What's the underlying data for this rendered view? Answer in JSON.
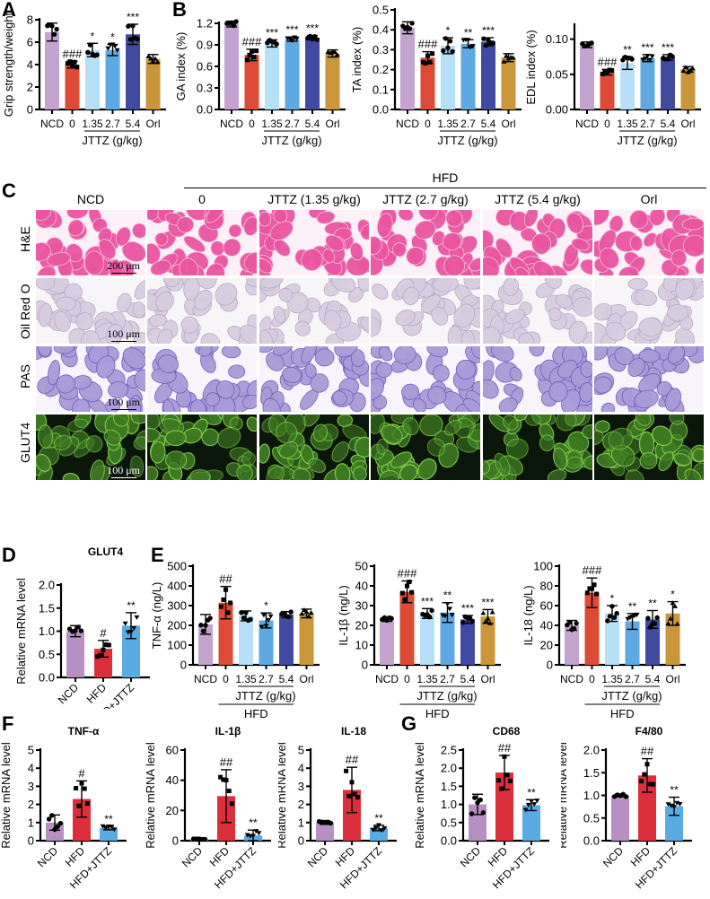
{
  "panels": {
    "A": "A",
    "B": "B",
    "C": "C",
    "D": "D",
    "E": "E",
    "F": "F",
    "G": "G"
  },
  "colors": {
    "NCD": "#c3a3cf",
    "HFD0": "#dd4b37",
    "J135": "#b5e0f8",
    "J27": "#5ea9e2",
    "J54": "#3f4aa0",
    "Orl": "#c9973a",
    "HFD_red": "#dc2f3c",
    "HFDJTTZ": "#5aaae4",
    "NCD_mrna": "#b78fc3"
  },
  "dose_axis": {
    "categories": [
      "NCD",
      "0",
      "1.35",
      "2.7",
      "5.4",
      "Orl"
    ],
    "group_label": "JTTZ (g/kg)",
    "hfd_label": "HFD"
  },
  "micrograph": {
    "hfd_header": "HFD",
    "columns": [
      "NCD",
      "0",
      "JTTZ (1.35 g/kg)",
      "JTTZ (2.7 g/kg)",
      "JTTZ (5.4 g/kg)",
      "Orl"
    ],
    "rows": [
      "H&E",
      "Oil Red O",
      "PAS",
      "GLUT4"
    ],
    "scalebars": [
      "200 μm",
      "100 μm",
      "100 μm",
      "100 μm"
    ]
  },
  "chart_data": [
    {
      "id": "A",
      "type": "bar",
      "title": "",
      "ylabel": "Grip strength/weight",
      "categories": [
        "NCD",
        "0",
        "1.35",
        "2.7",
        "5.4",
        "Orl"
      ],
      "values": [
        6.9,
        4.0,
        5.3,
        5.3,
        6.7,
        4.5
      ],
      "errors": [
        0.8,
        0.3,
        0.6,
        0.5,
        0.9,
        0.4
      ],
      "sig": [
        "",
        "###",
        "*",
        "*",
        "***",
        ""
      ],
      "ylim": [
        0,
        8
      ],
      "yticks": [
        "0",
        "2",
        "4",
        "6",
        "8"
      ],
      "ytick_vals": [
        0,
        2,
        4,
        6,
        8
      ]
    },
    {
      "id": "B1",
      "type": "bar",
      "ylabel": "GA index (%)",
      "categories": [
        "NCD",
        "0",
        "1.35",
        "2.7",
        "5.4",
        "Orl"
      ],
      "values": [
        1.19,
        0.76,
        0.92,
        0.98,
        1.0,
        0.78
      ],
      "errors": [
        0.04,
        0.08,
        0.05,
        0.03,
        0.03,
        0.05
      ],
      "sig": [
        "",
        "###",
        "***",
        "***",
        "***",
        ""
      ],
      "ylim": [
        0,
        1.2
      ],
      "yticks": [
        "0.0",
        "0.3",
        "0.6",
        "0.9",
        "1.2"
      ],
      "ytick_vals": [
        0,
        0.3,
        0.6,
        0.9,
        1.2
      ]
    },
    {
      "id": "B2",
      "type": "bar",
      "ylabel": "TA index (%)",
      "categories": [
        "NCD",
        "0",
        "1.35",
        "2.7",
        "5.4",
        "Orl"
      ],
      "values": [
        0.41,
        0.26,
        0.32,
        0.33,
        0.34,
        0.26
      ],
      "errors": [
        0.03,
        0.03,
        0.04,
        0.02,
        0.02,
        0.02
      ],
      "sig": [
        "",
        "###",
        "*",
        "**",
        "***",
        ""
      ],
      "ylim": [
        0,
        0.5
      ],
      "yticks": [
        "0.0",
        "0.1",
        "0.2",
        "0.3",
        "0.4",
        "0.5"
      ],
      "ytick_vals": [
        0,
        0.1,
        0.2,
        0.3,
        0.4,
        0.5
      ]
    },
    {
      "id": "B3",
      "type": "bar",
      "ylabel": "EDL index (%)",
      "categories": [
        "NCD",
        "0",
        "1.35",
        "2.7",
        "5.4",
        "Orl"
      ],
      "values": [
        0.092,
        0.053,
        0.066,
        0.073,
        0.074,
        0.057
      ],
      "errors": [
        0.004,
        0.004,
        0.009,
        0.005,
        0.004,
        0.004
      ],
      "sig": [
        "",
        "###",
        "**",
        "***",
        "***",
        ""
      ],
      "ylim": [
        0,
        0.12
      ],
      "yticks": [
        "0.00",
        "0.05",
        "0.10"
      ],
      "ytick_vals": [
        0,
        0.05,
        0.1
      ]
    },
    {
      "id": "D",
      "type": "bar",
      "title": "GLUT4",
      "ylabel": "Relative mRNA level",
      "categories": [
        "NCD",
        "HFD",
        "HFD+JTTZ"
      ],
      "values": [
        1.0,
        0.62,
        1.12
      ],
      "errors": [
        0.12,
        0.18,
        0.28
      ],
      "sig": [
        "",
        "#",
        "**"
      ],
      "ylim": [
        0,
        2.0
      ],
      "yticks": [
        "0.0",
        "0.5",
        "1.0",
        "1.5",
        "2.0"
      ],
      "ytick_vals": [
        0,
        0.5,
        1.0,
        1.5,
        2.0
      ]
    },
    {
      "id": "E1",
      "type": "bar",
      "ylabel": "TNF-α (ng/L)",
      "categories": [
        "NCD",
        "0",
        "1.35",
        "2.7",
        "5.4",
        "Orl"
      ],
      "values": [
        205,
        315,
        248,
        225,
        255,
        260
      ],
      "errors": [
        50,
        82,
        25,
        38,
        15,
        22
      ],
      "sig": [
        "",
        "##",
        "",
        "*",
        "",
        ""
      ],
      "ylim": [
        0,
        500
      ],
      "yticks": [
        "0",
        "100",
        "200",
        "300",
        "400",
        "500"
      ],
      "ytick_vals": [
        0,
        100,
        200,
        300,
        400,
        500
      ]
    },
    {
      "id": "E2",
      "type": "bar",
      "ylabel": "IL-1β (ng/L)",
      "categories": [
        "NCD",
        "0",
        "1.35",
        "2.7",
        "5.4",
        "Orl"
      ],
      "values": [
        23,
        37,
        26,
        26.5,
        23,
        24.5
      ],
      "errors": [
        1,
        5.5,
        2.5,
        5,
        2,
        3.5
      ],
      "sig": [
        "",
        "###",
        "***",
        "**",
        "***",
        "***"
      ],
      "ylim": [
        0,
        50
      ],
      "yticks": [
        "0",
        "10",
        "20",
        "30",
        "40",
        "50"
      ],
      "ytick_vals": [
        0,
        10,
        20,
        30,
        40,
        50
      ]
    },
    {
      "id": "E3",
      "type": "bar",
      "ylabel": "IL-18 (ng/L)",
      "categories": [
        "NCD",
        "0",
        "1.35",
        "2.7",
        "5.4",
        "Orl"
      ],
      "values": [
        40,
        73,
        52,
        44,
        46,
        52
      ],
      "errors": [
        5,
        15,
        8,
        8,
        9,
        12
      ],
      "sig": [
        "",
        "###",
        "*",
        "**",
        "**",
        "*"
      ],
      "ylim": [
        0,
        100
      ],
      "yticks": [
        "0",
        "20",
        "40",
        "60",
        "80",
        "100"
      ],
      "ytick_vals": [
        0,
        20,
        40,
        60,
        80,
        100
      ]
    },
    {
      "id": "F1",
      "type": "bar",
      "title": "TNF-α",
      "ylabel": "Relative mRNA level",
      "categories": [
        "NCD",
        "HFD",
        "HFD+JTTZ"
      ],
      "values": [
        1.0,
        2.3,
        0.7
      ],
      "errors": [
        0.42,
        1.0,
        0.1
      ],
      "sig": [
        "",
        "#",
        "**"
      ],
      "ylim": [
        0,
        5
      ],
      "yticks": [
        "0",
        "1",
        "2",
        "3",
        "4",
        "5"
      ],
      "ytick_vals": [
        0,
        1,
        2,
        3,
        4,
        5
      ]
    },
    {
      "id": "F2",
      "type": "bar",
      "title": "IL-1β",
      "ylabel": "Relative mRNA level",
      "categories": [
        "NCD",
        "HFD",
        "HFD+JTTZ"
      ],
      "values": [
        1.0,
        29.5,
        3.5
      ],
      "errors": [
        0.4,
        17.5,
        3.5
      ],
      "sig": [
        "",
        "##",
        "**"
      ],
      "ylim": [
        0,
        60
      ],
      "yticks": [
        "0",
        "20",
        "40",
        "60"
      ],
      "ytick_vals": [
        0,
        20,
        40,
        60
      ]
    },
    {
      "id": "F3",
      "type": "bar",
      "title": "IL-18",
      "ylabel": "Relative mRNA level",
      "categories": [
        "NCD",
        "HFD",
        "HFD+JTTZ"
      ],
      "values": [
        1.0,
        2.8,
        0.7
      ],
      "errors": [
        0.1,
        1.25,
        0.15
      ],
      "sig": [
        "",
        "##",
        "**"
      ],
      "ylim": [
        0,
        5
      ],
      "yticks": [
        "0",
        "1",
        "2",
        "3",
        "4",
        "5"
      ],
      "ytick_vals": [
        0,
        1,
        2,
        3,
        4,
        5
      ]
    },
    {
      "id": "G1",
      "type": "bar",
      "title": "CD68",
      "ylabel": "Relative mRNA level",
      "categories": [
        "NCD",
        "HFD",
        "HFD+JTTZ"
      ],
      "values": [
        1.0,
        1.88,
        0.98
      ],
      "errors": [
        0.28,
        0.47,
        0.15
      ],
      "sig": [
        "",
        "##",
        "**"
      ],
      "ylim": [
        0,
        2.5
      ],
      "yticks": [
        "0.0",
        "0.5",
        "1.0",
        "1.5",
        "2.0",
        "2.5"
      ],
      "ytick_vals": [
        0,
        0.5,
        1.0,
        1.5,
        2.0,
        2.5
      ]
    },
    {
      "id": "G2",
      "type": "bar",
      "title": "F4/80",
      "ylabel": "Relative mRNA level",
      "categories": [
        "NCD",
        "HFD",
        "HFD+JTTZ"
      ],
      "values": [
        1.0,
        1.44,
        0.76
      ],
      "errors": [
        0.03,
        0.37,
        0.2
      ],
      "sig": [
        "",
        "##",
        "**"
      ],
      "ylim": [
        0,
        2.0
      ],
      "yticks": [
        "0.0",
        "0.5",
        "1.0",
        "1.5",
        "2.0"
      ],
      "ytick_vals": [
        0,
        0.5,
        1.0,
        1.5,
        2.0
      ]
    }
  ]
}
